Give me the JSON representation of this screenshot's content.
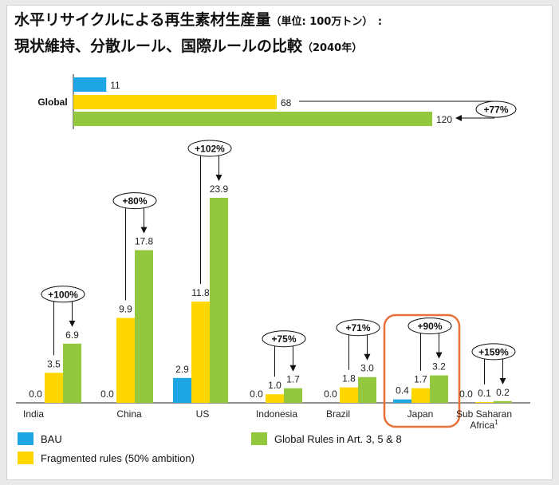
{
  "title": {
    "line1": "水平リサイクルによる再生素材生産量",
    "line1_unit": "（単位: 100万トン）　:",
    "line2": "現状維持、分散ルール、国際ルールの比較",
    "line2_year": "（2040年）"
  },
  "colors": {
    "bau": "#1ea5e3",
    "fragmented": "#ffd700",
    "global": "#93c83e",
    "highlight": "#e8703a"
  },
  "chart_data": [
    {
      "type": "bar",
      "orientation": "horizontal",
      "categories": [
        "Global"
      ],
      "series": [
        {
          "name": "BAU",
          "values": [
            11
          ]
        },
        {
          "name": "Fragmented rules (50% ambition)",
          "values": [
            68
          ]
        },
        {
          "name": "Global Rules in Art. 3, 5 & 8",
          "values": [
            120
          ]
        }
      ],
      "value_labels": [
        "11",
        "68",
        "120"
      ],
      "annotation": "+77%"
    },
    {
      "type": "bar",
      "categories": [
        "India",
        "China",
        "US",
        "Indonesia",
        "Brazil",
        "Japan",
        "Sub Saharan Africa"
      ],
      "category_footnotes": [
        "",
        "",
        "",
        "",
        "",
        "",
        "1"
      ],
      "series": [
        {
          "name": "BAU",
          "values": [
            0.0,
            0.0,
            2.9,
            0.0,
            0.0,
            0.4,
            0.0
          ]
        },
        {
          "name": "Fragmented rules (50% ambition)",
          "values": [
            3.5,
            9.9,
            11.8,
            1.0,
            1.8,
            1.7,
            0.1
          ]
        },
        {
          "name": "Global Rules in Art. 3, 5 & 8",
          "values": [
            6.9,
            17.8,
            23.9,
            1.7,
            3.0,
            3.2,
            0.2
          ]
        }
      ],
      "value_labels": [
        [
          "0.0",
          "3.5",
          "6.9"
        ],
        [
          "0.0",
          "9.9",
          "17.8"
        ],
        [
          "2.9",
          "11.8",
          "23.9"
        ],
        [
          "0.0",
          "1.0",
          "1.7"
        ],
        [
          "0.0",
          "1.8",
          "3.0"
        ],
        [
          "0.4",
          "1.7",
          "3.2"
        ],
        [
          "0.0",
          "0.1",
          "0.2"
        ]
      ],
      "annotations": [
        "+100%",
        "+80%",
        "+102%",
        "+75%",
        "+71%",
        "+90%",
        "+159%"
      ],
      "highlighted_category": "Japan",
      "legend": [
        {
          "label": "BAU"
        },
        {
          "label": "Global Rules in Art. 3, 5 & 8"
        },
        {
          "label": "Fragmented rules (50% ambition)"
        }
      ]
    }
  ]
}
